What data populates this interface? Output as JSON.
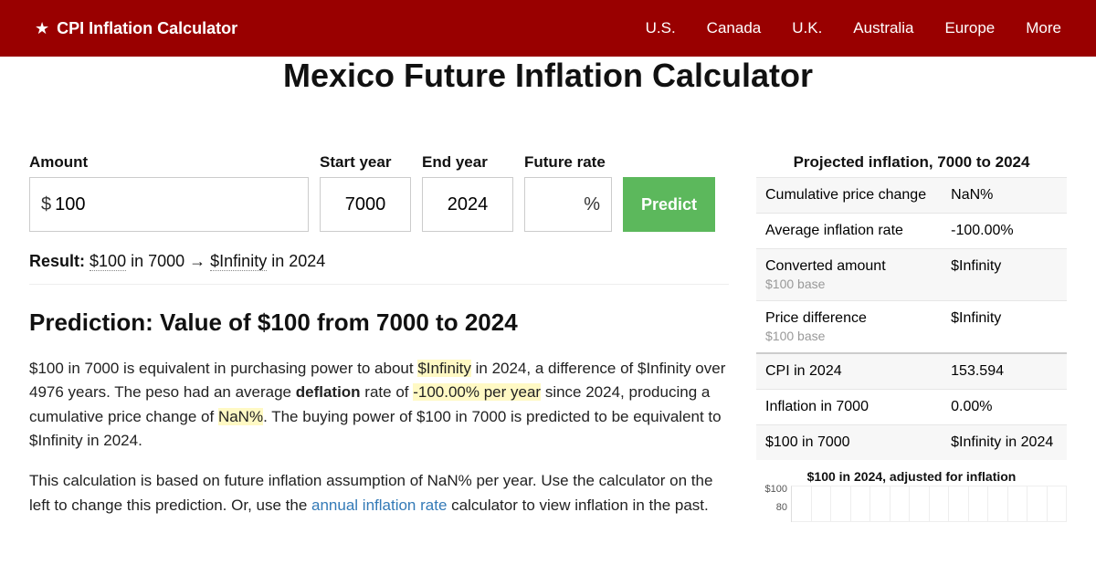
{
  "header": {
    "brand": "CPI Inflation Calculator",
    "nav": [
      "U.S.",
      "Canada",
      "U.K.",
      "Australia",
      "Europe",
      "More"
    ]
  },
  "page_title": "Mexico Future Inflation Calculator",
  "form": {
    "amount_label": "Amount",
    "amount_prefix": "$",
    "amount_value": "100",
    "start_label": "Start year",
    "start_value": "7000",
    "end_label": "End year",
    "end_value": "2024",
    "rate_label": "Future rate",
    "rate_suffix": "%",
    "rate_value": "",
    "predict_label": "Predict"
  },
  "result": {
    "prefix": "Result:",
    "from_amount": "$100",
    "mid1": " in 7000 → ",
    "to_amount": "$Infinity",
    "mid2": " in 2024"
  },
  "prediction_heading": "Prediction: Value of $100 from 7000 to 2024",
  "para1": {
    "t1": "$100 in 7000 is equivalent in purchasing power to about ",
    "hl1": "$Infinity",
    "t2": " in 2024, a difference of $Infinity over 4976 years. The peso had an average ",
    "b1": "deflation",
    "t3": " rate of ",
    "hl2": "-100.00% per year",
    "t4": " since 2024, producing a cumulative price change of ",
    "hl3": "NaN%",
    "t5": ". The buying power of $100 in 7000 is predicted to be equivalent to $Infinity in 2024."
  },
  "para2": {
    "t1": "This calculation is based on future inflation assumption of NaN% per year. Use the calculator on the left to change this prediction. Or, use the ",
    "link": "annual inflation rate",
    "t2": " calculator to view inflation in the past."
  },
  "sidebar": {
    "title": "Projected inflation, 7000 to 2024",
    "rows": [
      {
        "label": "Cumulative price change",
        "sub": "",
        "value": "NaN%"
      },
      {
        "label": "Average inflation rate",
        "sub": "",
        "value": "-100.00%"
      },
      {
        "label": "Converted amount",
        "sub": "$100 base",
        "value": "$Infinity"
      },
      {
        "label": "Price difference",
        "sub": "$100 base",
        "value": "$Infinity"
      },
      {
        "label": "CPI in 2024",
        "sub": "",
        "value": "153.594",
        "thick": true
      },
      {
        "label": "Inflation in 7000",
        "sub": "",
        "value": "0.00%"
      },
      {
        "label": "$100 in 7000",
        "sub": "",
        "value": "$Infinity in 2024"
      }
    ],
    "chart": {
      "title": "$100 in 2024, adjusted for inflation",
      "yticks": [
        "$100",
        "80"
      ],
      "grid_cols": 14,
      "bg": "#ffffff",
      "grid_color": "#eeeeee"
    }
  },
  "colors": {
    "header_bg": "#990000",
    "button_bg": "#5cb85c",
    "highlight_bg": "#fff9c4",
    "link": "#337ab7"
  }
}
